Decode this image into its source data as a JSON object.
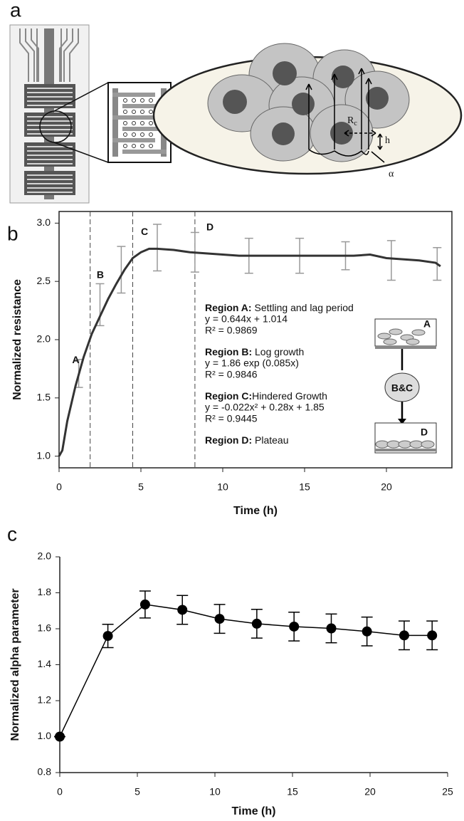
{
  "panels": [
    "a",
    "b",
    "c"
  ],
  "diagram": {
    "rc": "R",
    "rc_sub": "c",
    "h": "h",
    "alpha": "α"
  },
  "chart_data": [
    {
      "type": "line",
      "xlabel": "Time (h)",
      "ylabel": "Normalized resistance",
      "xlim": [
        0,
        24
      ],
      "xticks": [
        0,
        5,
        10,
        15,
        20
      ],
      "ylim": [
        0.9,
        3.1
      ],
      "yticks": [
        {
          "value": 1,
          "label": "1.0"
        },
        1.5,
        {
          "value": 2,
          "label": "2.0"
        },
        2.5,
        {
          "value": 3,
          "label": "3.0"
        }
      ],
      "series": [
        {
          "color": "#333333",
          "x": [
            0,
            0.2,
            0.5,
            1,
            1.5,
            2,
            2.5,
            3,
            3.5,
            4,
            4.5,
            5,
            5.5,
            6,
            7,
            8,
            9,
            10,
            11,
            12,
            13,
            14,
            15,
            16,
            17,
            18,
            19,
            20,
            21,
            22,
            23,
            23.3
          ],
          "values": [
            1.0,
            1.05,
            1.3,
            1.6,
            1.85,
            2.05,
            2.2,
            2.35,
            2.48,
            2.6,
            2.7,
            2.75,
            2.78,
            2.78,
            2.77,
            2.75,
            2.74,
            2.73,
            2.72,
            2.72,
            2.72,
            2.72,
            2.72,
            2.72,
            2.72,
            2.72,
            2.73,
            2.7,
            2.69,
            2.68,
            2.66,
            2.63
          ]
        }
      ],
      "error_bars": {
        "color": "#999999",
        "x": [
          1.2,
          2.5,
          3.8,
          6,
          8.3,
          11.6,
          14.7,
          17.5,
          20.3,
          23.1
        ],
        "values": [
          1.71,
          2.3,
          2.6,
          2.79,
          2.75,
          2.72,
          2.72,
          2.72,
          2.68,
          2.65
        ],
        "errors": [
          0.12,
          0.18,
          0.2,
          0.2,
          0.17,
          0.15,
          0.15,
          0.12,
          0.17,
          0.14
        ]
      },
      "dividers": [
        1.9,
        4.5,
        8.3
      ],
      "region_labels": [
        "A",
        "B",
        "C",
        "D"
      ],
      "regions_text": [
        {
          "title": "Region A:",
          "desc": " Settling and lag period",
          "lines": [
            "y = 0.644x + 1.014",
            "R² = 0.9869"
          ]
        },
        {
          "title": "Region B:",
          "desc": " Log growth",
          "lines": [
            "y = 1.86 exp (0.085x)",
            "R² = 0.9846"
          ]
        },
        {
          "title": "Region C:",
          "desc": "Hindered Growth",
          "lines": [
            "y = -0.022x² + 0.28x + 1.85",
            "R² = 0.9445"
          ]
        },
        {
          "title": "Region D:",
          "desc": " Plateau",
          "lines": []
        }
      ],
      "inset_labels": [
        "A",
        "B&C",
        "D"
      ]
    },
    {
      "type": "line",
      "xlabel": "Time (h)",
      "ylabel": "Normalized alpha parameter",
      "xlim": [
        0,
        25
      ],
      "xticks": [
        0,
        5,
        10,
        15,
        20,
        25
      ],
      "ylim": [
        0.8,
        2.0
      ],
      "yticks": [
        0.8,
        {
          "value": 1,
          "label": "1.0"
        },
        1.2,
        1.4,
        1.6,
        1.8,
        {
          "value": 2,
          "label": "2.0"
        }
      ],
      "series": [
        {
          "color": "#000000",
          "markers": true,
          "x": [
            0,
            3.1,
            5.5,
            7.9,
            10.3,
            12.7,
            15.1,
            17.5,
            19.8,
            22.2,
            24
          ],
          "values": [
            1.0,
            1.56,
            1.735,
            1.705,
            1.655,
            1.628,
            1.612,
            1.602,
            1.585,
            1.563,
            1.563
          ],
          "errors": [
            0,
            0.065,
            0.075,
            0.08,
            0.08,
            0.08,
            0.08,
            0.08,
            0.08,
            0.08,
            0.08
          ]
        }
      ]
    }
  ]
}
